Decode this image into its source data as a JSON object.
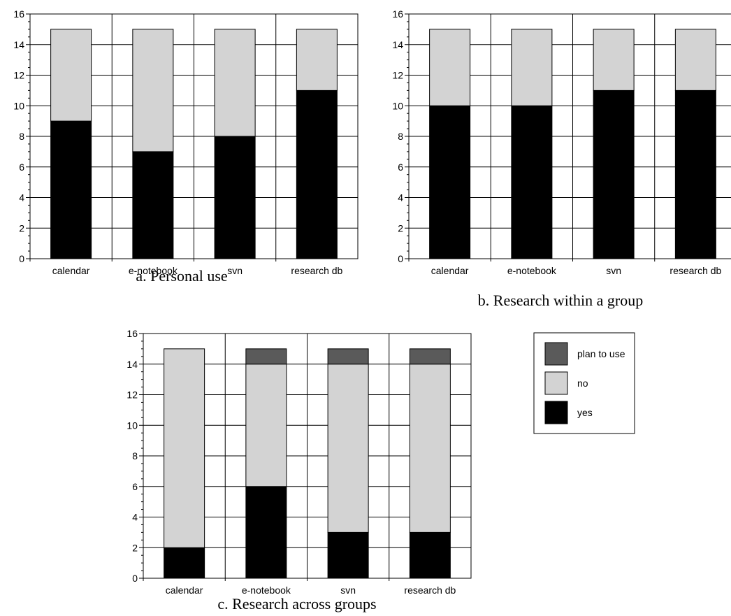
{
  "colors": {
    "yes": "#000000",
    "no": "#d3d3d3",
    "plan_to_use": "#5a5a5a",
    "grid": "#000000",
    "background": "#ffffff"
  },
  "legend": {
    "entries": [
      {
        "key": "plan_to_use",
        "label": "plan to use"
      },
      {
        "key": "no",
        "label": "no"
      },
      {
        "key": "yes",
        "label": "yes"
      }
    ]
  },
  "chart_data": [
    {
      "type": "bar",
      "stacked": true,
      "caption": "a. Personal use",
      "categories": [
        "calendar",
        "e-notebook",
        "svn",
        "research db"
      ],
      "series": [
        {
          "name": "yes",
          "values": [
            9,
            7,
            8,
            11
          ]
        },
        {
          "name": "no",
          "values": [
            6,
            8,
            7,
            4
          ]
        },
        {
          "name": "plan to use",
          "values": [
            0,
            0,
            0,
            0
          ]
        }
      ],
      "ylim": [
        0,
        16
      ],
      "yticks": [
        0,
        2,
        4,
        6,
        8,
        10,
        12,
        14,
        16
      ],
      "grid": true
    },
    {
      "type": "bar",
      "stacked": true,
      "caption": "b. Research within a group",
      "categories": [
        "calendar",
        "e-notebook",
        "svn",
        "research db"
      ],
      "series": [
        {
          "name": "yes",
          "values": [
            10,
            10,
            11,
            11
          ]
        },
        {
          "name": "no",
          "values": [
            5,
            5,
            4,
            4
          ]
        },
        {
          "name": "plan to use",
          "values": [
            0,
            0,
            0,
            0
          ]
        }
      ],
      "ylim": [
        0,
        16
      ],
      "yticks": [
        0,
        2,
        4,
        6,
        8,
        10,
        12,
        14,
        16
      ],
      "grid": true
    },
    {
      "type": "bar",
      "stacked": true,
      "caption": "c. Research across groups",
      "categories": [
        "calendar",
        "e-notebook",
        "svn",
        "research db"
      ],
      "series": [
        {
          "name": "yes",
          "values": [
            2,
            6,
            3,
            3
          ]
        },
        {
          "name": "no",
          "values": [
            13,
            8,
            11,
            11
          ]
        },
        {
          "name": "plan to use",
          "values": [
            0,
            1,
            1,
            1
          ]
        }
      ],
      "ylim": [
        0,
        16
      ],
      "yticks": [
        0,
        2,
        4,
        6,
        8,
        10,
        12,
        14,
        16
      ],
      "grid": true,
      "legend_position": "right"
    }
  ]
}
